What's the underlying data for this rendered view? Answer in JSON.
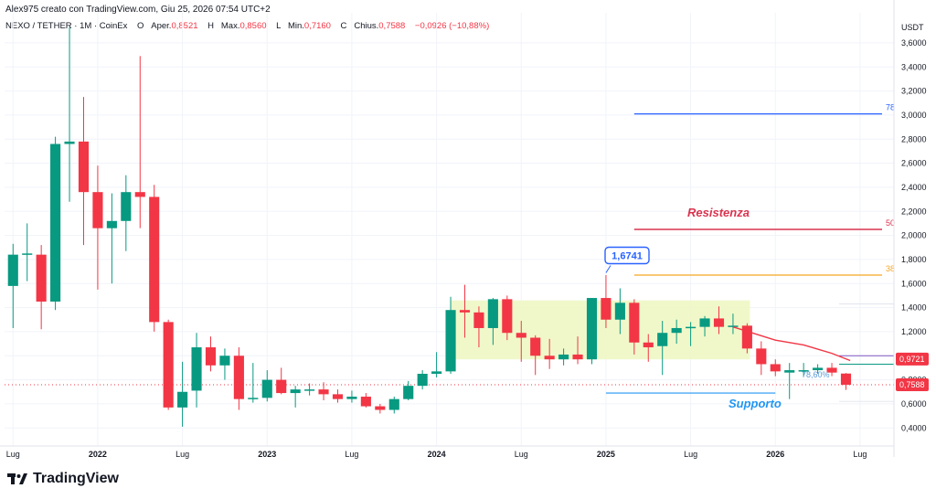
{
  "header": {
    "author_line": "Alex975 creato con TradingView.com, Giu 25, 2026 07:54 UTC+2",
    "symbol": "NEXO / TETHER · 1M · CoinEx",
    "open_label": "O",
    "open_text": "Aper.",
    "open": "0,8521",
    "high_label": "H",
    "high_text": "Max.",
    "high": "0,8560",
    "low_label": "L",
    "low_text": "Min.",
    "low": "0,7160",
    "close_label": "C",
    "close_text": "Chius.",
    "close": "0,7588",
    "change": "−0,0926 (−10,88%)"
  },
  "footer": {
    "brand": "TradingView",
    "logo_icon": "tradingview-logo-icon"
  },
  "colors": {
    "up": "#089981",
    "down": "#f23645",
    "zone": "#eef7c4",
    "resist": "#d9344f",
    "fib78": "#2962ff",
    "fib38": "#f5a623",
    "support": "#2196f3",
    "label_box": "#2962ff"
  },
  "chart_data": {
    "type": "candlestick",
    "currency": "USDT",
    "y_ticks": [
      "0,4000",
      "0,6000",
      "0,8000",
      "1,0000",
      "1,2000",
      "1,4000",
      "1,6000",
      "1,8000",
      "2,0000",
      "2,2000",
      "2,4000",
      "2,6000",
      "2,8000",
      "3,0000",
      "3,2000",
      "3,4000",
      "3,6000"
    ],
    "y_tick_values": [
      0.4,
      0.6,
      0.8,
      1.0,
      1.2,
      1.4,
      1.6,
      1.8,
      2.0,
      2.2,
      2.4,
      2.6,
      2.8,
      3.0,
      3.2,
      3.4,
      3.6
    ],
    "ylim": [
      0.25,
      3.85
    ],
    "x_ticks": [
      {
        "label": "Lug",
        "index": 0
      },
      {
        "label": "2022",
        "index": 6
      },
      {
        "label": "Lug",
        "index": 12
      },
      {
        "label": "2023",
        "index": 18
      },
      {
        "label": "Lug",
        "index": 24
      },
      {
        "label": "2024",
        "index": 30
      },
      {
        "label": "Lug",
        "index": 36
      },
      {
        "label": "2025",
        "index": 42
      },
      {
        "label": "Lug",
        "index": 48
      },
      {
        "label": "2026",
        "index": 54
      },
      {
        "label": "Lug",
        "index": 60
      }
    ],
    "x_range": [
      -0.6,
      62.4
    ],
    "candles": [
      {
        "o": 1.58,
        "h": 1.93,
        "l": 1.23,
        "c": 1.84
      },
      {
        "o": 1.84,
        "h": 2.1,
        "l": 1.62,
        "c": 1.85
      },
      {
        "o": 1.84,
        "h": 1.92,
        "l": 1.22,
        "c": 1.45
      },
      {
        "o": 1.45,
        "h": 2.82,
        "l": 1.38,
        "c": 2.76
      },
      {
        "o": 2.76,
        "h": 3.73,
        "l": 2.28,
        "c": 2.78
      },
      {
        "o": 2.78,
        "h": 3.15,
        "l": 1.92,
        "c": 2.36
      },
      {
        "o": 2.36,
        "h": 2.58,
        "l": 1.55,
        "c": 2.06
      },
      {
        "o": 2.06,
        "h": 2.35,
        "l": 1.6,
        "c": 2.12
      },
      {
        "o": 2.12,
        "h": 2.5,
        "l": 1.87,
        "c": 2.36
      },
      {
        "o": 2.36,
        "h": 3.49,
        "l": 2.06,
        "c": 2.32
      },
      {
        "o": 2.32,
        "h": 2.42,
        "l": 1.2,
        "c": 1.28
      },
      {
        "o": 1.28,
        "h": 1.3,
        "l": 0.55,
        "c": 0.57
      },
      {
        "o": 0.57,
        "h": 0.95,
        "l": 0.41,
        "c": 0.7
      },
      {
        "o": 0.71,
        "h": 1.19,
        "l": 0.57,
        "c": 1.07
      },
      {
        "o": 1.07,
        "h": 1.16,
        "l": 0.87,
        "c": 0.92
      },
      {
        "o": 0.92,
        "h": 1.06,
        "l": 0.8,
        "c": 1.0
      },
      {
        "o": 1.0,
        "h": 1.07,
        "l": 0.55,
        "c": 0.64
      },
      {
        "o": 0.64,
        "h": 0.94,
        "l": 0.61,
        "c": 0.65
      },
      {
        "o": 0.65,
        "h": 0.88,
        "l": 0.62,
        "c": 0.8
      },
      {
        "o": 0.8,
        "h": 0.9,
        "l": 0.68,
        "c": 0.69
      },
      {
        "o": 0.69,
        "h": 0.75,
        "l": 0.57,
        "c": 0.72
      },
      {
        "o": 0.72,
        "h": 0.77,
        "l": 0.67,
        "c": 0.72
      },
      {
        "o": 0.72,
        "h": 0.78,
        "l": 0.63,
        "c": 0.68
      },
      {
        "o": 0.68,
        "h": 0.72,
        "l": 0.61,
        "c": 0.64
      },
      {
        "o": 0.64,
        "h": 0.71,
        "l": 0.61,
        "c": 0.66
      },
      {
        "o": 0.66,
        "h": 0.69,
        "l": 0.57,
        "c": 0.58
      },
      {
        "o": 0.58,
        "h": 0.6,
        "l": 0.52,
        "c": 0.55
      },
      {
        "o": 0.55,
        "h": 0.66,
        "l": 0.52,
        "c": 0.64
      },
      {
        "o": 0.64,
        "h": 0.79,
        "l": 0.63,
        "c": 0.75
      },
      {
        "o": 0.75,
        "h": 0.88,
        "l": 0.72,
        "c": 0.85
      },
      {
        "o": 0.85,
        "h": 1.03,
        "l": 0.82,
        "c": 0.87
      },
      {
        "o": 0.87,
        "h": 1.49,
        "l": 0.85,
        "c": 1.38
      },
      {
        "o": 1.38,
        "h": 1.59,
        "l": 1.15,
        "c": 1.36
      },
      {
        "o": 1.36,
        "h": 1.41,
        "l": 1.07,
        "c": 1.23
      },
      {
        "o": 1.23,
        "h": 1.48,
        "l": 1.09,
        "c": 1.47
      },
      {
        "o": 1.47,
        "h": 1.5,
        "l": 1.13,
        "c": 1.19
      },
      {
        "o": 1.19,
        "h": 1.29,
        "l": 0.95,
        "c": 1.15
      },
      {
        "o": 1.15,
        "h": 1.17,
        "l": 0.84,
        "c": 1.0
      },
      {
        "o": 1.0,
        "h": 1.14,
        "l": 0.89,
        "c": 0.97
      },
      {
        "o": 0.97,
        "h": 1.06,
        "l": 0.92,
        "c": 1.01
      },
      {
        "o": 1.01,
        "h": 1.16,
        "l": 0.93,
        "c": 0.97
      },
      {
        "o": 0.97,
        "h": 1.48,
        "l": 0.93,
        "c": 1.48
      },
      {
        "o": 1.48,
        "h": 1.67,
        "l": 1.23,
        "c": 1.3
      },
      {
        "o": 1.3,
        "h": 1.56,
        "l": 1.18,
        "c": 1.44
      },
      {
        "o": 1.44,
        "h": 1.47,
        "l": 1.01,
        "c": 1.11
      },
      {
        "o": 1.11,
        "h": 1.18,
        "l": 0.95,
        "c": 1.07
      },
      {
        "o": 1.08,
        "h": 1.29,
        "l": 0.84,
        "c": 1.19
      },
      {
        "o": 1.19,
        "h": 1.3,
        "l": 1.1,
        "c": 1.23
      },
      {
        "o": 1.23,
        "h": 1.28,
        "l": 1.08,
        "c": 1.24
      },
      {
        "o": 1.24,
        "h": 1.33,
        "l": 1.16,
        "c": 1.31
      },
      {
        "o": 1.31,
        "h": 1.41,
        "l": 1.18,
        "c": 1.24
      },
      {
        "o": 1.24,
        "h": 1.35,
        "l": 1.18,
        "c": 1.25
      },
      {
        "o": 1.25,
        "h": 1.27,
        "l": 1.02,
        "c": 1.06
      },
      {
        "o": 1.06,
        "h": 1.12,
        "l": 0.84,
        "c": 0.93
      },
      {
        "o": 0.93,
        "h": 0.97,
        "l": 0.83,
        "c": 0.87
      },
      {
        "o": 0.86,
        "h": 0.94,
        "l": 0.64,
        "c": 0.88
      },
      {
        "o": 0.88,
        "h": 0.94,
        "l": 0.83,
        "c": 0.88
      },
      {
        "o": 0.88,
        "h": 0.93,
        "l": 0.85,
        "c": 0.9
      },
      {
        "o": 0.9,
        "h": 0.94,
        "l": 0.83,
        "c": 0.86
      },
      {
        "o": 0.8521,
        "h": 0.856,
        "l": 0.716,
        "c": 0.7588
      }
    ],
    "ma_line": [
      {
        "i": 51,
        "v": 1.24
      },
      {
        "i": 54,
        "v": 1.13
      },
      {
        "i": 56,
        "v": 1.09
      },
      {
        "i": 58,
        "v": 1.02
      },
      {
        "i": 59.3,
        "v": 0.96
      }
    ],
    "zone": {
      "i_start": 31,
      "i_end": 52.2,
      "low": 0.97,
      "high": 1.46
    },
    "levels": [
      {
        "name": "fib-786",
        "value": 3.01,
        "i_start": 44,
        "label": "78",
        "color": "#2962ff"
      },
      {
        "name": "resistance",
        "value": 2.05,
        "i_start": 44,
        "label": "50",
        "color": "#d9344f"
      },
      {
        "name": "fib-382",
        "value": 1.67,
        "i_start": 44,
        "label": "38",
        "color": "#f5a623"
      },
      {
        "name": "support",
        "value": 0.69,
        "i_start": 42,
        "i_end": 54,
        "label": "",
        "color": "#2196f3"
      }
    ],
    "annotations": {
      "resistance_label": "Resistenza",
      "support_label": "Supporto",
      "high_callout": "1,6741",
      "high_value": 1.6741,
      "fib_label": "78,60%",
      "fib_label_value": 0.79
    },
    "price_tags": [
      {
        "value": 0.9721,
        "text": "0,9721",
        "color": "#f23645"
      },
      {
        "value": 0.7588,
        "text": "0,7588",
        "color": "#f23645"
      }
    ],
    "y_axis_side": "right"
  }
}
